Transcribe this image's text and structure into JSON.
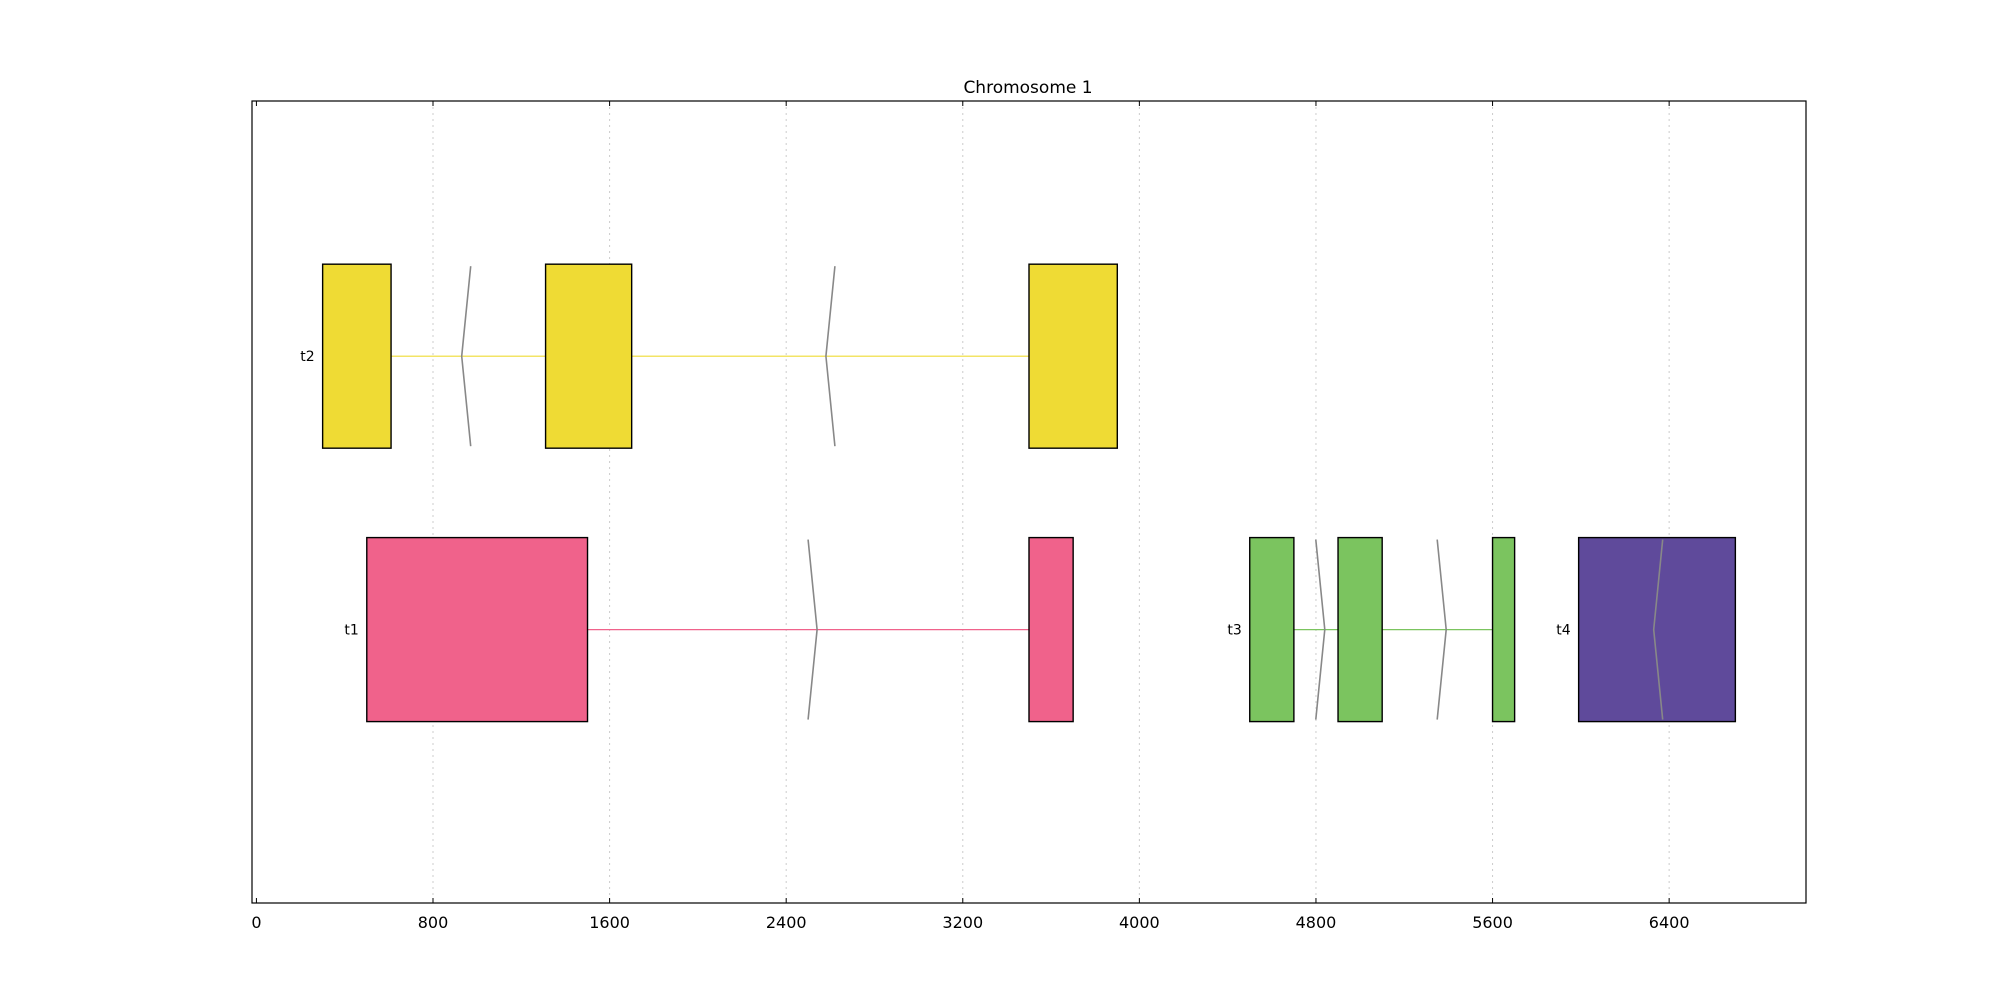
{
  "chart_data": {
    "type": "gene-structure",
    "title": "Chromosome 1",
    "xlim": [
      -20,
      7020
    ],
    "ylim": [
      0,
      4.4
    ],
    "grid": "vertical-dotted",
    "x_ticks": [
      0,
      800,
      1600,
      2400,
      3200,
      4000,
      4800,
      5600,
      6400
    ],
    "x_tick_labels": [
      "0",
      "800",
      "1600",
      "2400",
      "3200",
      "4000",
      "4800",
      "5600",
      "6400"
    ],
    "colors": {
      "t1": "#f0628b",
      "t2": "#efdb34",
      "t3": "#7bc45f",
      "t4": "#5f4a9b",
      "arrow": "#888888",
      "grid": "#cccccc"
    },
    "transcripts": [
      {
        "name": "t2",
        "row": 3,
        "exons": [
          [
            300,
            610
          ],
          [
            1310,
            1700
          ],
          [
            3500,
            3900
          ]
        ],
        "strand_marks": [
          {
            "x": 930,
            "dir": "-"
          },
          {
            "x": 2580,
            "dir": "-"
          }
        ]
      },
      {
        "name": "t1",
        "row": 1.5,
        "exons": [
          [
            500,
            1500
          ],
          [
            3500,
            3700
          ]
        ],
        "strand_marks": [
          {
            "x": 2540,
            "dir": "+"
          }
        ]
      },
      {
        "name": "t3",
        "row": 1.5,
        "exons": [
          [
            4500,
            4700
          ],
          [
            4900,
            5100
          ],
          [
            5600,
            5700
          ]
        ],
        "strand_marks": [
          {
            "x": 4840,
            "dir": "+"
          },
          {
            "x": 5390,
            "dir": "+"
          }
        ]
      },
      {
        "name": "t4",
        "row": 1.5,
        "exons": [
          [
            5990,
            6700
          ]
        ],
        "strand_marks": [
          {
            "x": 6330,
            "dir": "-"
          }
        ]
      }
    ]
  }
}
